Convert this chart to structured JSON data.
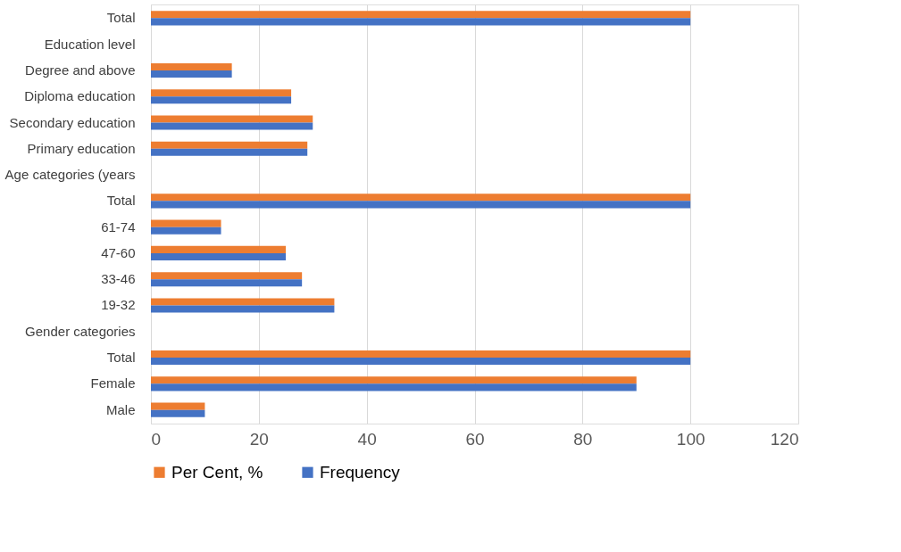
{
  "chart_data": {
    "type": "bar",
    "orientation": "horizontal",
    "categories": [
      "Total",
      "Education level",
      "Degree and above",
      "Diploma education",
      "Secondary education",
      "Primary education",
      "Age categories (years",
      "Total",
      "61-74",
      "47-60",
      "33-46",
      "19-32",
      "Gender categories",
      "Total",
      "Female",
      "Male"
    ],
    "series": [
      {
        "name": "Per Cent, %",
        "color": "#ed7d31",
        "values": [
          100,
          null,
          15,
          26,
          30,
          29,
          null,
          100,
          13,
          25,
          28,
          34,
          null,
          100,
          90,
          10
        ]
      },
      {
        "name": "Frequency",
        "color": "#4472c4",
        "values": [
          100,
          null,
          15,
          26,
          30,
          29,
          null,
          100,
          13,
          25,
          28,
          34,
          null,
          100,
          90,
          10
        ]
      }
    ],
    "xlim": [
      0,
      120
    ],
    "xticks": [
      0,
      20,
      40,
      60,
      80,
      100,
      120
    ],
    "grid": "x",
    "legend": "bottom"
  }
}
